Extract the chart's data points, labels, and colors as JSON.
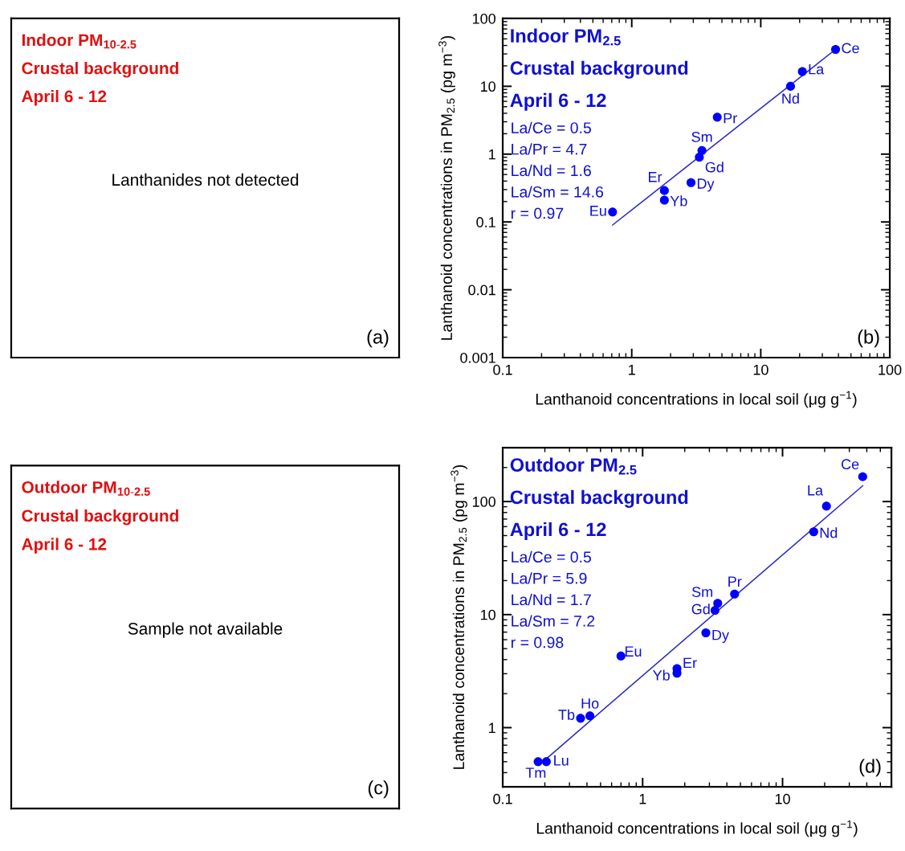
{
  "chart_data": [
    {
      "type": "other",
      "annotations": [
        "Indoor PM$_{10-2.5}$",
        "Crustal background",
        "April 6 - 12",
        "Lanthanides not detected",
        "(a)"
      ]
    },
    {
      "type": "scatter",
      "xlabel": "Lanthanoid concentrations in local soil (μg g$^{−1}$)",
      "ylabel": "Lanthanoid concentrations in PM$_{2.5}$ (pg m$^{−3}$)",
      "log": "xy",
      "xlim": [
        0.1,
        100
      ],
      "xticks": [
        0.1,
        1,
        10,
        100
      ],
      "ylim": [
        0.001,
        100
      ],
      "yticks": [
        0.001,
        0.01,
        0.1,
        1,
        10,
        100
      ],
      "series": [
        {
          "type": "scatter",
          "marker": "circle",
          "color": "#0000ff",
          "x": [
            38,
            21,
            17,
            4.6,
            3.5,
            3.34,
            2.88,
            1.79,
            1.79,
            0.71
          ],
          "values": [
            35,
            16.5,
            10,
            3.5,
            1.13,
            0.9,
            0.38,
            0.29,
            0.21,
            0.14
          ]
        },
        {
          "type": "line",
          "color": "#2828c8",
          "x": [
            0.71,
            38
          ],
          "values": [
            0.09,
            35
          ]
        }
      ],
      "annotations": [
        "Indoor PM$_{2.5}$",
        "Crustal background",
        "April 6 - 12",
        "La/Ce = 0.5",
        "La/Pr = 4.7",
        "La/Nd = 1.6",
        "La/Sm = 14.6",
        "r = 0.97",
        "(b)",
        {
          "text": "Ce",
          "x": 38,
          "y": 35
        },
        {
          "text": "La",
          "x": 21,
          "y": 16.5
        },
        {
          "text": "Nd",
          "x": 17,
          "y": 10
        },
        {
          "text": "Pr",
          "x": 4.6,
          "y": 3.5
        },
        {
          "text": "Sm",
          "x": 3.5,
          "y": 1.13
        },
        {
          "text": "Gd",
          "x": 3.34,
          "y": 0.9
        },
        {
          "text": "Dy",
          "x": 2.88,
          "y": 0.38
        },
        {
          "text": "Er",
          "x": 1.79,
          "y": 0.29
        },
        {
          "text": "Yb",
          "x": 1.79,
          "y": 0.21
        },
        {
          "text": "Eu",
          "x": 0.71,
          "y": 0.14
        }
      ]
    },
    {
      "type": "other",
      "annotations": [
        "Outdoor PM$_{10-2.5}$",
        "Crustal background",
        "April 6 - 12",
        "Sample not available",
        "(c)"
      ]
    },
    {
      "type": "scatter",
      "xlabel": "Lanthanoid concentrations in local soil (μg g$^{−1}$)",
      "ylabel": "Lanthanoid concentrations in PM$_{2.5}$ (pg m$^{−3}$)",
      "log": "xy",
      "xlim": [
        0.1,
        60
      ],
      "xticks": [
        0.1,
        1,
        10
      ],
      "ylim": [
        0.3,
        300
      ],
      "yticks": [
        1,
        10,
        100
      ],
      "series": [
        {
          "type": "scatter",
          "marker": "circle",
          "color": "#0000ff",
          "x": [
            37.4,
            20.6,
            16.7,
            4.54,
            3.44,
            3.29,
            2.83,
            0.7,
            1.76,
            1.76,
            0.42,
            0.36,
            0.205,
            0.179
          ],
          "values": [
            166,
            91,
            54,
            15.2,
            12.6,
            10.9,
            6.9,
            4.3,
            3.33,
            3.03,
            1.27,
            1.21,
            0.5,
            0.5
          ]
        },
        {
          "type": "line",
          "color": "#2828c8",
          "x": [
            0.194,
            37.4
          ],
          "values": [
            0.5,
            138
          ]
        }
      ],
      "annotations": [
        "Outdoor PM$_{2.5}$",
        "Crustal background",
        "April 6 - 12",
        "La/Ce = 0.5",
        "La/Pr = 5.9",
        "La/Nd = 1.7",
        "La/Sm = 7.2",
        "r = 0.98",
        "(d)",
        {
          "text": "Ce",
          "x": 37.4,
          "y": 166
        },
        {
          "text": "La",
          "x": 20.6,
          "y": 91
        },
        {
          "text": "Nd",
          "x": 16.7,
          "y": 54
        },
        {
          "text": "Pr",
          "x": 4.54,
          "y": 15.2
        },
        {
          "text": "Sm",
          "x": 3.44,
          "y": 12.6
        },
        {
          "text": "Gd",
          "x": 3.29,
          "y": 10.9
        },
        {
          "text": "Dy",
          "x": 2.83,
          "y": 6.9
        },
        {
          "text": "Eu",
          "x": 0.7,
          "y": 4.3
        },
        {
          "text": "Er",
          "x": 1.76,
          "y": 3.33
        },
        {
          "text": "Yb",
          "x": 1.76,
          "y": 3.03
        },
        {
          "text": "Ho",
          "x": 0.42,
          "y": 1.27
        },
        {
          "text": "Tb",
          "x": 0.36,
          "y": 1.21
        },
        {
          "text": "Lu",
          "x": 0.205,
          "y": 0.5
        },
        {
          "text": "Tm",
          "x": 0.179,
          "y": 0.5
        }
      ]
    }
  ]
}
